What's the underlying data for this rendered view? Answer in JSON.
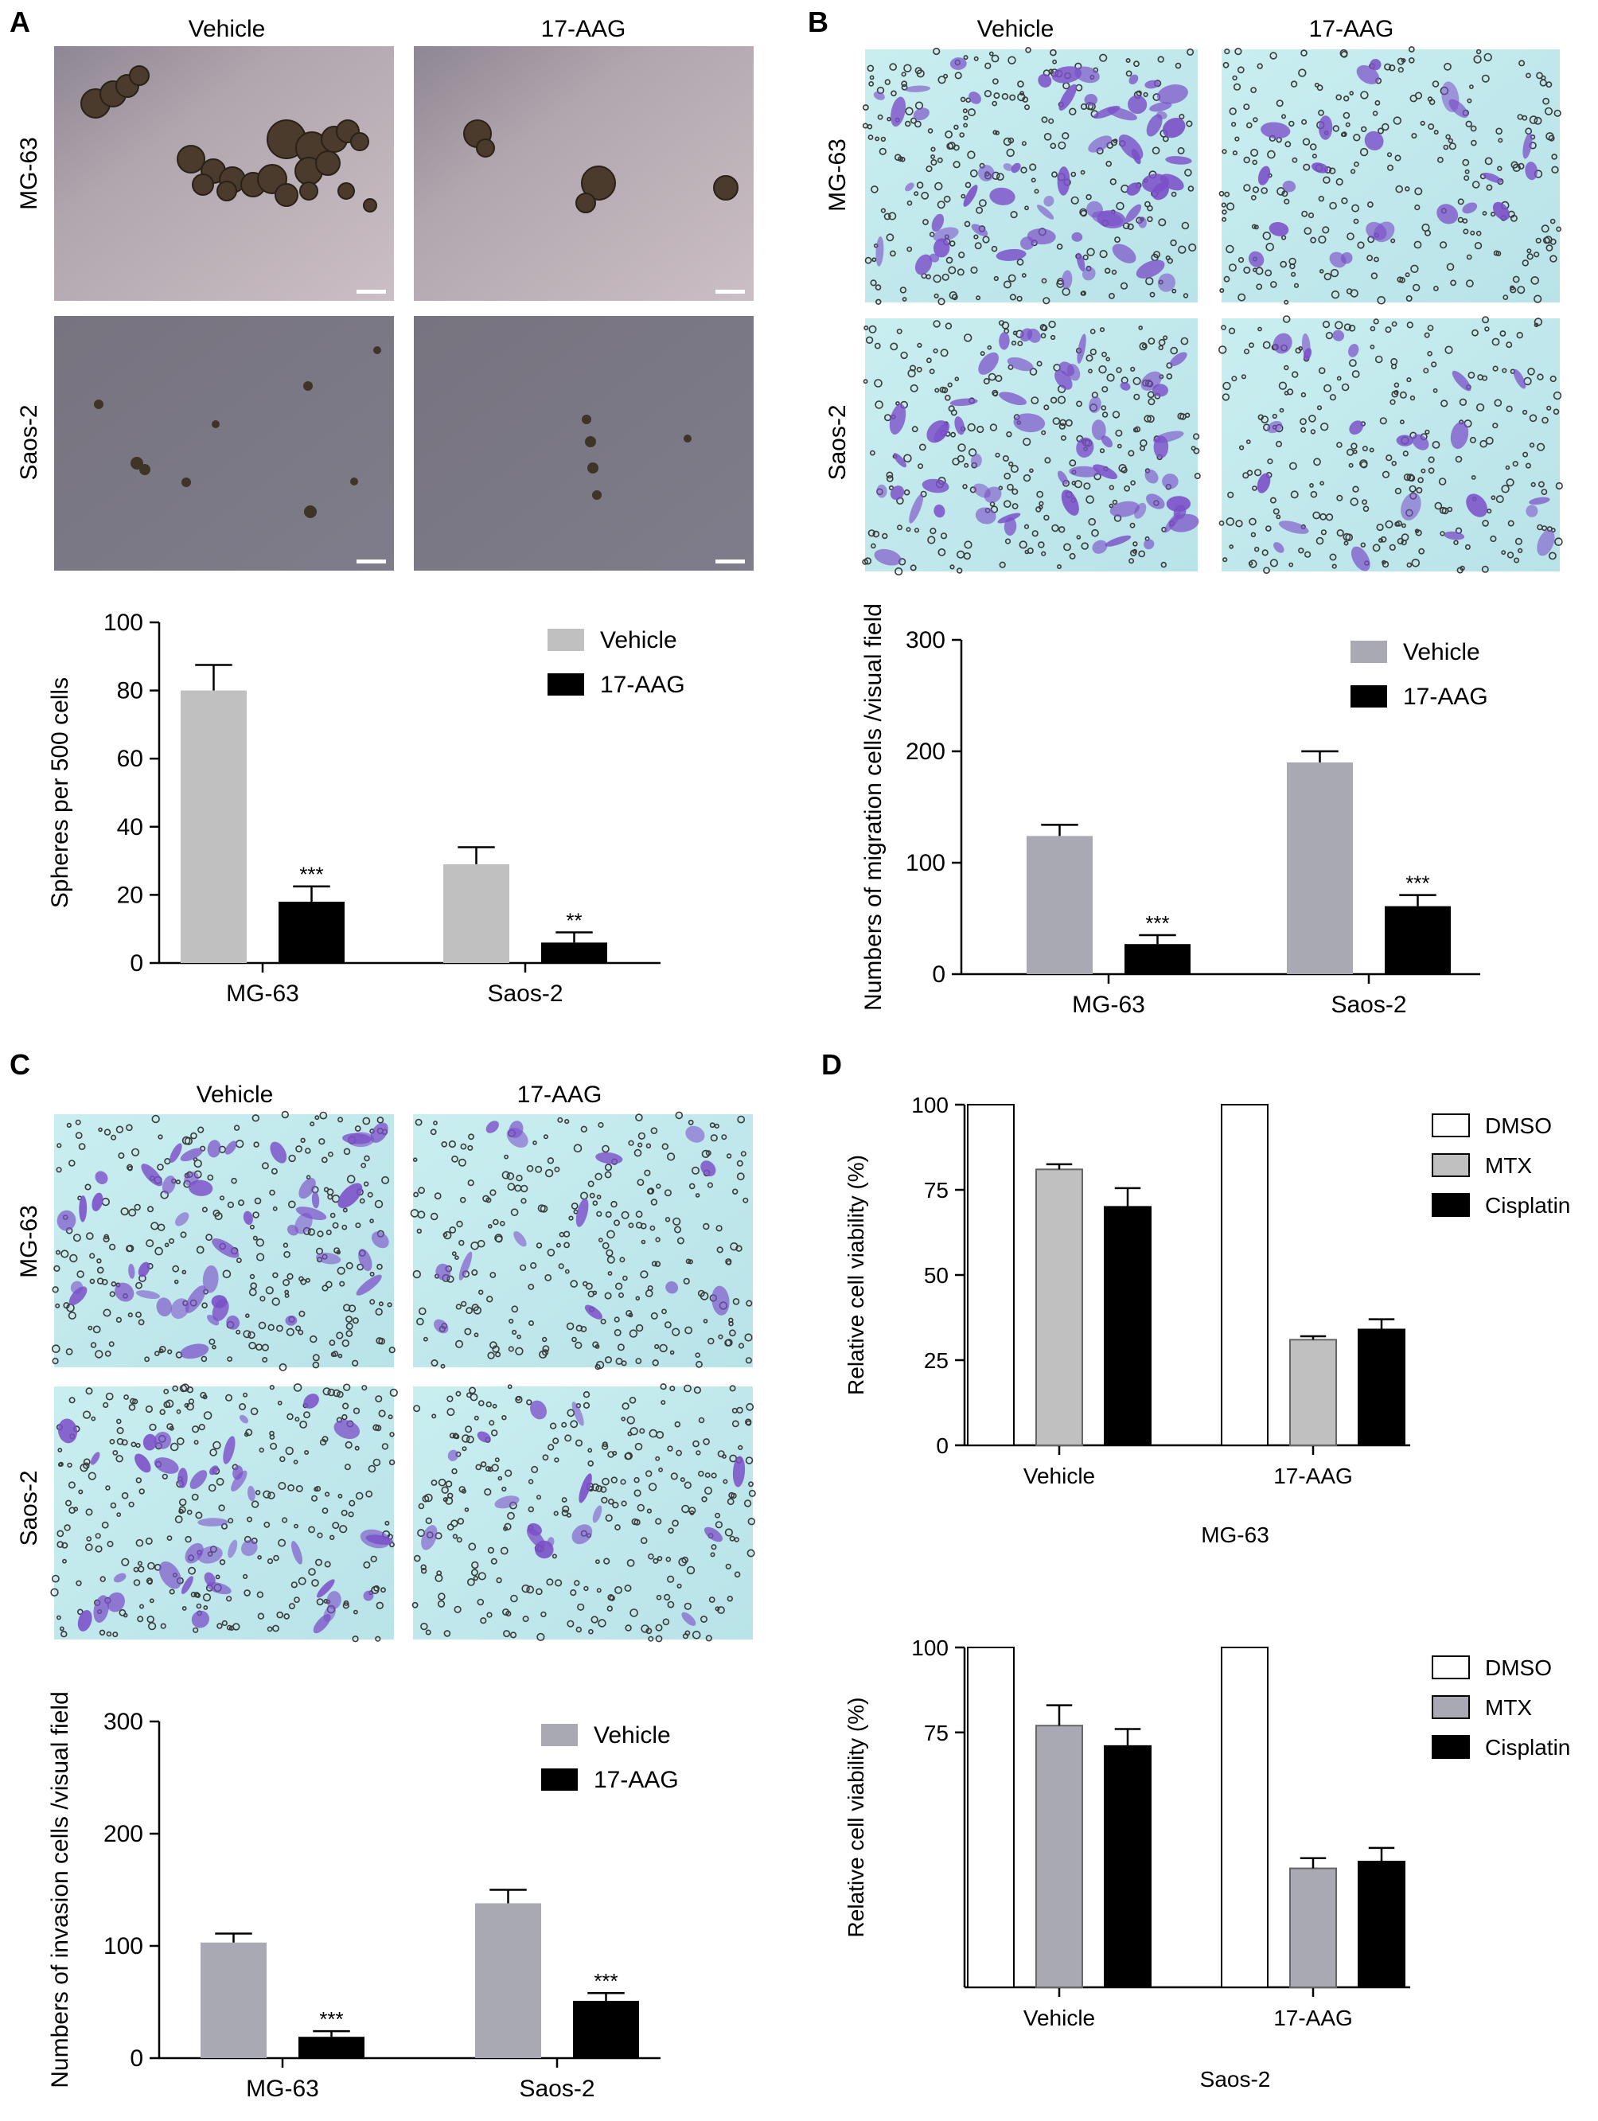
{
  "panels": {
    "A": {
      "letter": "A",
      "col_labels": [
        "Vehicle",
        "17-AAG"
      ],
      "row_labels": [
        "MG-63",
        "Saos-2"
      ]
    },
    "B": {
      "letter": "B",
      "col_labels": [
        "Vehicle",
        "17-AAG"
      ],
      "row_labels": [
        "MG-63",
        "Saos-2"
      ]
    },
    "C": {
      "letter": "C",
      "col_labels": [
        "Vehicle",
        "17-AAG"
      ],
      "row_labels": [
        "MG-63",
        "Saos-2"
      ]
    },
    "D": {
      "letter": "D"
    }
  },
  "colors": {
    "gray": "#c0c0c0",
    "bluegray": "#a9a9b4",
    "black": "#000000",
    "white": "#ffffff"
  },
  "chart_data": [
    {
      "id": "A",
      "type": "bar",
      "categories": [
        "MG-63",
        "Saos-2"
      ],
      "series": [
        {
          "name": "Vehicle",
          "values": [
            80,
            29
          ],
          "errors": [
            7.5,
            5
          ],
          "color": "#c0c0c0"
        },
        {
          "name": "17-AAG",
          "values": [
            18,
            6
          ],
          "errors": [
            4.5,
            3
          ],
          "color": "#000000"
        }
      ],
      "significance": [
        [
          "",
          "***"
        ],
        [
          "",
          "**"
        ]
      ],
      "ylabel": "Spheres per 500 cells",
      "ylim": [
        0,
        100
      ],
      "yticks": [
        0,
        20,
        40,
        60,
        80,
        100
      ],
      "legend": "top-right"
    },
    {
      "id": "B",
      "type": "bar",
      "categories": [
        "MG-63",
        "Saos-2"
      ],
      "series": [
        {
          "name": "Vehicle",
          "values": [
            124,
            190
          ],
          "errors": [
            10,
            10
          ],
          "color": "#a9a9b4"
        },
        {
          "name": "17-AAG",
          "values": [
            27,
            61
          ],
          "errors": [
            8,
            10
          ],
          "color": "#000000"
        }
      ],
      "significance": [
        [
          "",
          "***"
        ],
        [
          "",
          "***"
        ]
      ],
      "ylabel": "Numbers of migration cells /visual field",
      "ylim": [
        0,
        300
      ],
      "yticks": [
        0,
        100,
        200,
        300
      ],
      "legend": "top-right"
    },
    {
      "id": "C",
      "type": "bar",
      "categories": [
        "MG-63",
        "Saos-2"
      ],
      "series": [
        {
          "name": "Vehicle",
          "values": [
            103,
            138
          ],
          "errors": [
            8,
            12
          ],
          "color": "#a9a9b4"
        },
        {
          "name": "17-AAG",
          "values": [
            19,
            51
          ],
          "errors": [
            5,
            7
          ],
          "color": "#000000"
        }
      ],
      "significance": [
        [
          "",
          "***"
        ],
        [
          "",
          "***"
        ]
      ],
      "ylabel": "Numbers of invasion cells /visual field",
      "ylim": [
        0,
        300
      ],
      "yticks": [
        0,
        100,
        200,
        300
      ],
      "legend": "top-right"
    },
    {
      "id": "D1",
      "type": "bar",
      "categories": [
        "Vehicle",
        "17-AAG"
      ],
      "series": [
        {
          "name": "DMSO",
          "values": [
            100,
            100
          ],
          "errors": [
            0,
            0
          ],
          "color": "#ffffff"
        },
        {
          "name": "MTX",
          "values": [
            81,
            31
          ],
          "errors": [
            1.5,
            1
          ],
          "color": "#c0c0c0"
        },
        {
          "name": "Cisplatin",
          "values": [
            70,
            34
          ],
          "errors": [
            5.5,
            3
          ],
          "color": "#000000"
        }
      ],
      "ylabel": "Relative cell viability (%)",
      "xlabel": "MG-63",
      "ylim": [
        0,
        100
      ],
      "yticks": [
        0,
        25,
        50,
        75,
        100
      ],
      "legend": "top-right"
    },
    {
      "id": "D2",
      "type": "bar",
      "categories": [
        "Vehicle",
        "17-AAG"
      ],
      "series": [
        {
          "name": "DMSO",
          "values": [
            100,
            100
          ],
          "errors": [
            0,
            0
          ],
          "color": "#ffffff"
        },
        {
          "name": "MTX",
          "values": [
            77,
            35
          ],
          "errors": [
            6,
            3
          ],
          "color": "#a9a9b4"
        },
        {
          "name": "Cisplatin",
          "values": [
            71,
            37
          ],
          "errors": [
            5,
            4
          ],
          "color": "#000000"
        }
      ],
      "ylabel": "Relative cell viability (%)",
      "xlabel": "Saos-2",
      "ylim": [
        0,
        100
      ],
      "yticks": [
        75,
        100
      ],
      "legend": "top-right"
    }
  ]
}
